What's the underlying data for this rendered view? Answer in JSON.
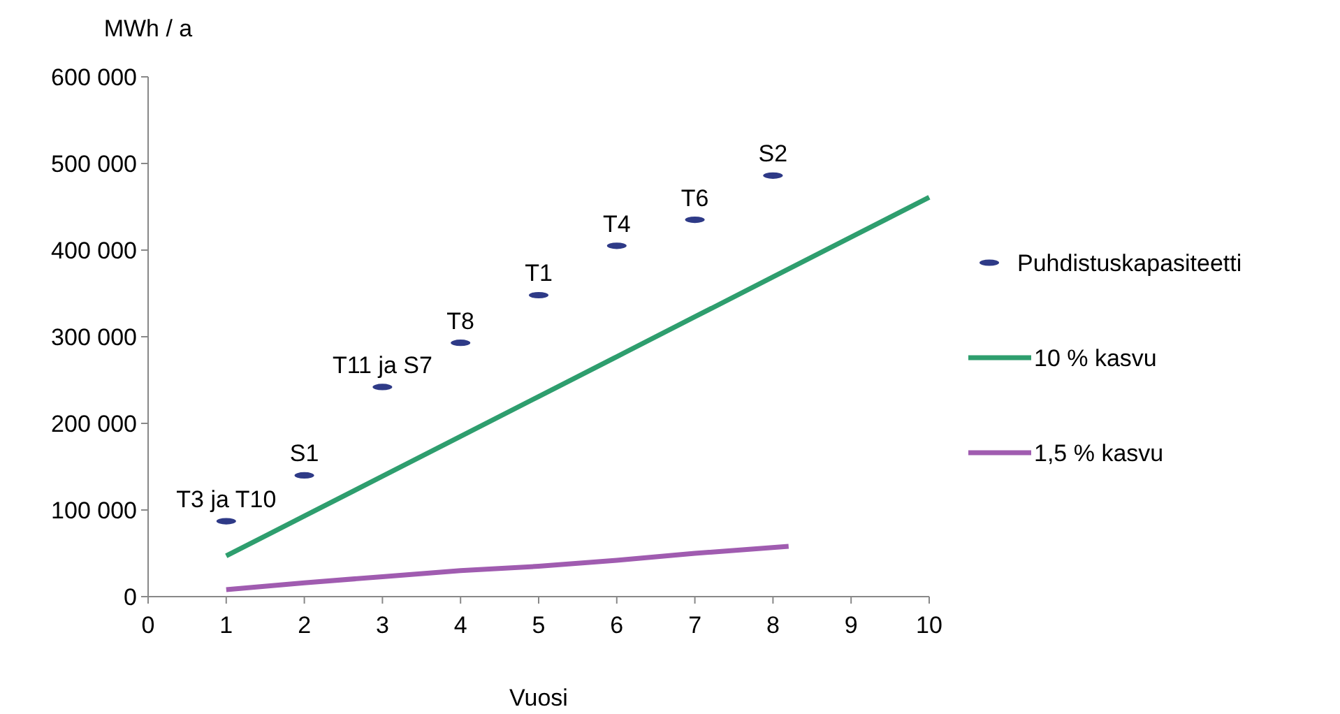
{
  "chart_data": {
    "type": "scatter",
    "ylabel": "MWh / a",
    "xlabel": "Vuosi",
    "xlim": [
      0,
      10
    ],
    "xticks": [
      0,
      1,
      2,
      3,
      4,
      5,
      6,
      7,
      8,
      9,
      10
    ],
    "ylim": [
      0,
      600000
    ],
    "yticks": [
      {
        "value": 0,
        "label": "0"
      },
      {
        "value": 100000,
        "label": "100 000"
      },
      {
        "value": 200000,
        "label": "200 000"
      },
      {
        "value": 300000,
        "label": "300 000"
      },
      {
        "value": 400000,
        "label": "400 000"
      },
      {
        "value": 500000,
        "label": "500 000"
      },
      {
        "value": 600000,
        "label": "600 000"
      }
    ],
    "grid": false,
    "legend": "right",
    "series": [
      {
        "name": "Puhdistuskapasiteetti",
        "color": "#2e3a87",
        "x": [
          1,
          2,
          3,
          4,
          5,
          6,
          7,
          8
        ],
        "values": [
          87000,
          140000,
          242000,
          293000,
          348000,
          405000,
          435000,
          486000
        ]
      },
      {
        "name": "10 % kasvu",
        "type": "line",
        "color": "#2e9e6e",
        "x": [
          1,
          2,
          3,
          4,
          5,
          6,
          7,
          8,
          9,
          10
        ],
        "values": [
          47000,
          93000,
          139000,
          185000,
          231000,
          277000,
          323000,
          369000,
          415000,
          461000
        ]
      },
      {
        "name": "1,5 % kasvu",
        "type": "line",
        "color": "#a05cb0",
        "x": [
          1,
          2,
          3,
          4,
          5,
          6,
          7,
          8.2
        ],
        "values": [
          8000,
          16000,
          23000,
          30000,
          35000,
          42000,
          50000,
          58000
        ]
      }
    ],
    "annotations": [
      {
        "text": "T3 ja T10",
        "x": 1,
        "y": 87000
      },
      {
        "text": "S1",
        "x": 2,
        "y": 140000
      },
      {
        "text": "T11 ja S7",
        "x": 3,
        "y": 242000
      },
      {
        "text": "T8",
        "x": 4,
        "y": 293000
      },
      {
        "text": "T1",
        "x": 5,
        "y": 348000
      },
      {
        "text": "T4",
        "x": 6,
        "y": 405000
      },
      {
        "text": "T6",
        "x": 7,
        "y": 435000
      },
      {
        "text": "S2",
        "x": 8,
        "y": 486000
      }
    ]
  }
}
